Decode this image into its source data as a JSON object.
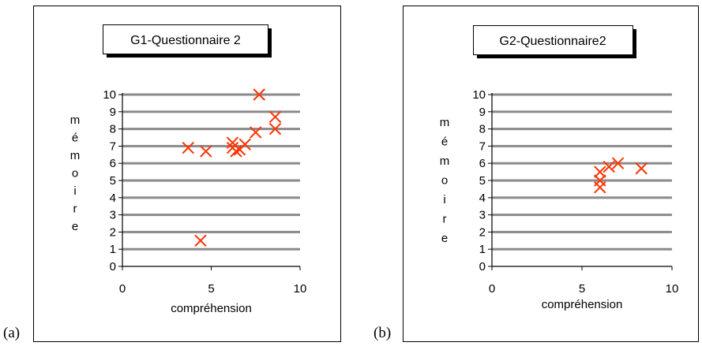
{
  "panel_labels": [
    "(a)",
    "(b)"
  ],
  "chart_data": [
    {
      "type": "scatter",
      "title": "G1-Questionnaire 2",
      "xlabel": "compréhension",
      "ylabel": "mémoire",
      "xlim": [
        0,
        10
      ],
      "ylim": [
        0,
        10
      ],
      "xticks": [
        "0",
        "5",
        "10"
      ],
      "yticks": [
        "0",
        "1",
        "2",
        "3",
        "4",
        "5",
        "6",
        "7",
        "8",
        "9",
        "10"
      ],
      "grid": "horizontal",
      "marker": "x",
      "marker_color": "#ff3300",
      "points": [
        {
          "x": 3.7,
          "y": 6.9
        },
        {
          "x": 4.7,
          "y": 6.7
        },
        {
          "x": 4.4,
          "y": 1.5
        },
        {
          "x": 6.2,
          "y": 7.2
        },
        {
          "x": 6.2,
          "y": 6.9
        },
        {
          "x": 6.4,
          "y": 6.7
        },
        {
          "x": 6.6,
          "y": 6.8
        },
        {
          "x": 6.9,
          "y": 7.1
        },
        {
          "x": 7.5,
          "y": 7.8
        },
        {
          "x": 7.7,
          "y": 10.0
        },
        {
          "x": 8.6,
          "y": 8.7
        },
        {
          "x": 8.6,
          "y": 8.0
        }
      ]
    },
    {
      "type": "scatter",
      "title": "G2-Questionnaire2",
      "xlabel": "compréhension",
      "ylabel": "mémoire",
      "xlim": [
        0,
        10
      ],
      "ylim": [
        0,
        10
      ],
      "xticks": [
        "0",
        "5",
        "10"
      ],
      "yticks": [
        "0",
        "1",
        "2",
        "3",
        "4",
        "5",
        "6",
        "7",
        "8",
        "9",
        "10"
      ],
      "grid": "horizontal",
      "marker": "x",
      "marker_color": "#ff3300",
      "points": [
        {
          "x": 6.0,
          "y": 5.5
        },
        {
          "x": 6.0,
          "y": 5.0
        },
        {
          "x": 6.0,
          "y": 4.6
        },
        {
          "x": 6.5,
          "y": 5.8
        },
        {
          "x": 7.0,
          "y": 6.0
        },
        {
          "x": 8.3,
          "y": 5.7
        }
      ]
    }
  ]
}
